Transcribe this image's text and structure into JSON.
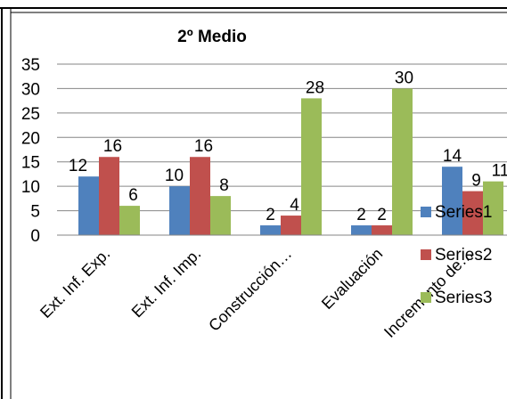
{
  "chart_data": {
    "type": "bar",
    "title": "2º Medio",
    "categories": [
      "Ext. Inf. Exp.",
      "Ext. Inf. Imp.",
      "Construcción…",
      "Evaluación",
      "Incremento de…"
    ],
    "series": [
      {
        "name": "Series1",
        "values": [
          12,
          10,
          2,
          2,
          14
        ],
        "color": "#4F81BD"
      },
      {
        "name": "Series2",
        "values": [
          16,
          16,
          4,
          2,
          9
        ],
        "color": "#C0504D"
      },
      {
        "name": "Series3",
        "values": [
          6,
          8,
          28,
          30,
          11
        ],
        "color": "#9BBB59"
      }
    ],
    "ylim": [
      0,
      35
    ],
    "yticks": [
      0,
      5,
      10,
      15,
      20,
      25,
      30,
      35
    ],
    "grid": true,
    "legend": "right",
    "data_labels": true
  }
}
